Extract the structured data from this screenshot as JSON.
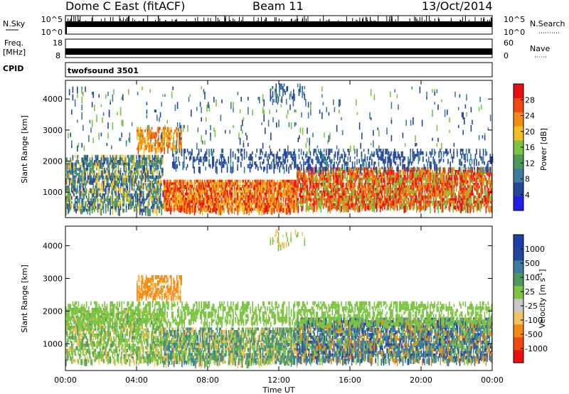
{
  "header": {
    "title": "Dome C East (fitACF)",
    "beam": "Beam 11",
    "date": "13/Oct/2014"
  },
  "top_panels": {
    "nsky_label": "N.Sky",
    "nsky_ticks": [
      "10^5",
      "10^0"
    ],
    "nsearch_label": "N.Search",
    "freq_label_line1": "Freq.",
    "freq_label_line2": "[MHz]",
    "freq_ticks": [
      "18",
      "8"
    ],
    "nave_label": "Nave",
    "nave_ticks": [
      "60",
      "0"
    ],
    "cpid_label": "CPID",
    "cpid_value": "twofsound 3501"
  },
  "colors": {
    "power_scale": [
      "#1f1fe8",
      "#24459c",
      "#3d7d9e",
      "#4f9a5a",
      "#7cc442",
      "#f0c020",
      "#f58a10",
      "#f04a10",
      "#e81010"
    ],
    "velocity_scale": [
      "#e81010",
      "#f04a10",
      "#f58a10",
      "#f5c060",
      "#c8c8c8",
      "#7cc442",
      "#4f9a5a",
      "#3d7d9e",
      "#24459c",
      "#1f3fa8"
    ]
  },
  "chart_data": [
    {
      "type": "heatmap",
      "name": "power",
      "ylabel": "Slant Range [km]",
      "xlabel": "Time UT",
      "x_ticks": [
        "00:00",
        "04:00",
        "08:00",
        "12:00",
        "16:00",
        "20:00",
        "00:00"
      ],
      "xlim_hours": [
        0,
        24
      ],
      "y_ticks": [
        1000,
        2000,
        3000,
        4000
      ],
      "ylim_km": [
        180,
        4600
      ],
      "colorbar_label": "Power [dB]",
      "colorbar_ticks": [
        4,
        8,
        12,
        16,
        20,
        24,
        28
      ],
      "colorbar_range": [
        0,
        32
      ],
      "regions": [
        {
          "t0": 0,
          "t1": 5.5,
          "r0": 400,
          "r1": 2200,
          "density": 0.55,
          "vals": [
            6,
            10,
            14,
            18
          ]
        },
        {
          "t0": 5.5,
          "t1": 13,
          "r0": 450,
          "r1": 1400,
          "density": 0.75,
          "vals": [
            18,
            24,
            28,
            30
          ]
        },
        {
          "t0": 13,
          "t1": 24,
          "r0": 500,
          "r1": 1800,
          "density": 0.7,
          "vals": [
            16,
            22,
            28,
            30
          ]
        },
        {
          "t0": 4,
          "t1": 6.5,
          "r0": 2400,
          "r1": 3100,
          "density": 0.45,
          "vals": [
            18,
            22,
            26
          ]
        },
        {
          "t0": 6,
          "t1": 24,
          "r0": 1800,
          "r1": 2400,
          "density": 0.25,
          "vals": [
            4,
            6,
            10
          ]
        },
        {
          "t0": 11.5,
          "t1": 13.5,
          "r0": 4000,
          "r1": 4500,
          "density": 0.2,
          "vals": [
            6,
            10
          ]
        },
        {
          "t0": 0,
          "t1": 24,
          "r0": 2500,
          "r1": 4400,
          "density": 0.03,
          "vals": [
            6,
            10,
            16
          ]
        }
      ]
    },
    {
      "type": "heatmap",
      "name": "velocity",
      "ylabel": "Slant Range [km]",
      "xlabel": "Time UT",
      "x_ticks": [
        "00:00",
        "04:00",
        "08:00",
        "12:00",
        "16:00",
        "20:00",
        "00:00"
      ],
      "xlim_hours": [
        0,
        24
      ],
      "y_ticks": [
        1000,
        2000,
        3000,
        4000
      ],
      "ylim_km": [
        180,
        4600
      ],
      "colorbar_label": "Velocity [m s^-1]",
      "colorbar_ticks": [
        "1000",
        "500",
        "100",
        "25",
        "-25",
        "-100",
        "-500",
        "-1000"
      ],
      "regions": [
        {
          "t0": 0,
          "t1": 5.5,
          "r0": 500,
          "r1": 2100,
          "density": 0.55,
          "vals": [
            0,
            10,
            60,
            -60
          ]
        },
        {
          "t0": 5.5,
          "t1": 13,
          "r0": 450,
          "r1": 1500,
          "density": 0.7,
          "vals": [
            60,
            120,
            0,
            -80
          ]
        },
        {
          "t0": 13,
          "t1": 24,
          "r0": 500,
          "r1": 1800,
          "density": 0.7,
          "vals": [
            120,
            300,
            600,
            -200,
            0
          ]
        },
        {
          "t0": 4,
          "t1": 6.5,
          "r0": 2400,
          "r1": 3100,
          "density": 0.5,
          "vals": [
            -150,
            -300,
            -80
          ]
        },
        {
          "t0": 0,
          "t1": 24,
          "r0": 1600,
          "r1": 2300,
          "density": 0.35,
          "vals": [
            0,
            10,
            -10
          ]
        },
        {
          "t0": 11.5,
          "t1": 13.5,
          "r0": 4000,
          "r1": 4500,
          "density": 0.15,
          "vals": [
            0,
            -60
          ]
        }
      ]
    }
  ]
}
